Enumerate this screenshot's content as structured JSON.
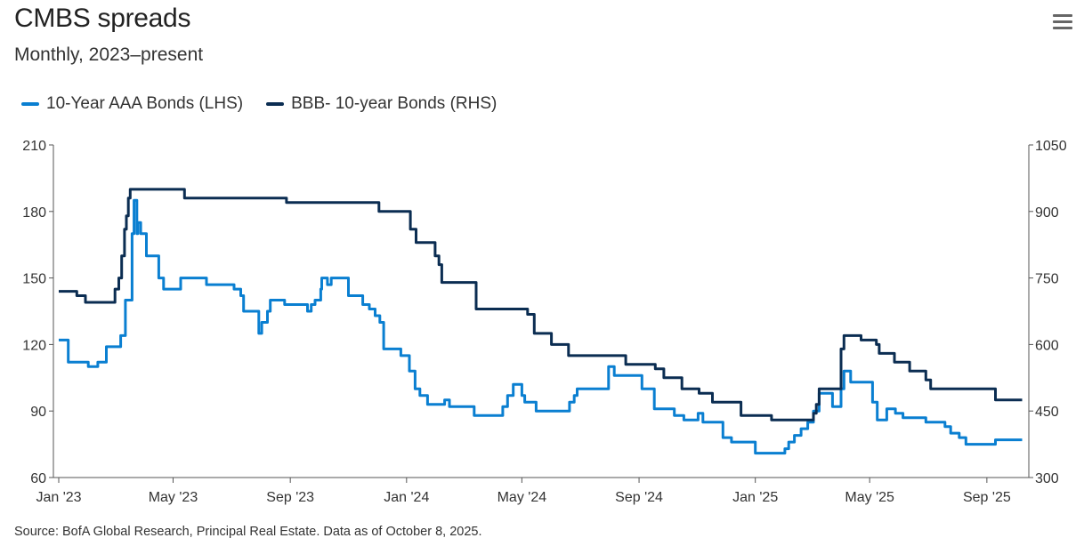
{
  "header": {
    "title": "CMBS spreads",
    "subtitle": "Monthly, 2023–present",
    "menu_icon": "hamburger-menu-icon"
  },
  "footer": {
    "source": "Source: BofA Global Research, Principal Real Estate. Data as of October 8, 2025."
  },
  "chart_data": {
    "type": "line",
    "step": true,
    "grid": false,
    "legend_position": "top-left",
    "x_tick_labels": [
      "Jan '23",
      "May '23",
      "Sep '23",
      "Jan '24",
      "May '24",
      "Sep '24",
      "Jan '25",
      "May '25",
      "Sep '25"
    ],
    "x_ticks": [
      "2023-01-01",
      "2023-05-01",
      "2023-09-01",
      "2024-01-01",
      "2024-05-01",
      "2024-09-01",
      "2025-01-01",
      "2025-05-01",
      "2025-09-01"
    ],
    "left_axis": {
      "ylim": [
        60,
        210
      ],
      "ticks": [
        60,
        90,
        120,
        150,
        180,
        210
      ]
    },
    "right_axis": {
      "ylim": [
        300,
        1050
      ],
      "ticks": [
        300,
        450,
        600,
        750,
        900,
        1050
      ]
    },
    "series": [
      {
        "name": "10-Year AAA Bonds (LHS)",
        "axis": "left",
        "color": "#0a7fd1",
        "points": [
          [
            "2023-01-01",
            122
          ],
          [
            "2023-01-11",
            112
          ],
          [
            "2023-02-01",
            110
          ],
          [
            "2023-02-11",
            112
          ],
          [
            "2023-02-20",
            119
          ],
          [
            "2023-03-07",
            124
          ],
          [
            "2023-03-12",
            140
          ],
          [
            "2023-03-19",
            170
          ],
          [
            "2023-03-21",
            185
          ],
          [
            "2023-03-24",
            170
          ],
          [
            "2023-03-25",
            175
          ],
          [
            "2023-03-28",
            170
          ],
          [
            "2023-04-03",
            160
          ],
          [
            "2023-04-16",
            150
          ],
          [
            "2023-04-21",
            145
          ],
          [
            "2023-05-09",
            150
          ],
          [
            "2023-06-05",
            147
          ],
          [
            "2023-07-04",
            145
          ],
          [
            "2023-07-11",
            142
          ],
          [
            "2023-07-14",
            135
          ],
          [
            "2023-07-30",
            125
          ],
          [
            "2023-08-02",
            130
          ],
          [
            "2023-08-08",
            135
          ],
          [
            "2023-08-11",
            140
          ],
          [
            "2023-08-26",
            138
          ],
          [
            "2023-09-19",
            135
          ],
          [
            "2023-09-23",
            138
          ],
          [
            "2023-09-27",
            140
          ],
          [
            "2023-10-03",
            145
          ],
          [
            "2023-10-04",
            150
          ],
          [
            "2023-10-10",
            147
          ],
          [
            "2023-10-14",
            150
          ],
          [
            "2023-11-01",
            142
          ],
          [
            "2023-11-16",
            138
          ],
          [
            "2023-11-23",
            136
          ],
          [
            "2023-11-29",
            133
          ],
          [
            "2023-12-04",
            130
          ],
          [
            "2023-12-08",
            118
          ],
          [
            "2023-12-26",
            115
          ],
          [
            "2024-01-04",
            108
          ],
          [
            "2024-01-10",
            100
          ],
          [
            "2024-01-15",
            97
          ],
          [
            "2024-01-23",
            93
          ],
          [
            "2024-02-10",
            95
          ],
          [
            "2024-02-15",
            92
          ],
          [
            "2024-03-12",
            88
          ],
          [
            "2024-04-11",
            92
          ],
          [
            "2024-04-16",
            97
          ],
          [
            "2024-04-22",
            102
          ],
          [
            "2024-05-01",
            97
          ],
          [
            "2024-05-04",
            94
          ],
          [
            "2024-05-16",
            90
          ],
          [
            "2024-06-20",
            94
          ],
          [
            "2024-06-25",
            97
          ],
          [
            "2024-06-28",
            100
          ],
          [
            "2024-07-31",
            110
          ],
          [
            "2024-08-06",
            106
          ],
          [
            "2024-09-04",
            100
          ],
          [
            "2024-09-17",
            91
          ],
          [
            "2024-10-08",
            88
          ],
          [
            "2024-10-18",
            86
          ],
          [
            "2024-11-02",
            89
          ],
          [
            "2024-11-07",
            85
          ],
          [
            "2024-11-28",
            78
          ],
          [
            "2024-12-07",
            76
          ],
          [
            "2025-01-01",
            71
          ],
          [
            "2025-02-01",
            73
          ],
          [
            "2025-02-05",
            76
          ],
          [
            "2025-02-11",
            79
          ],
          [
            "2025-02-18",
            82
          ],
          [
            "2025-02-25",
            85
          ],
          [
            "2025-03-03",
            90
          ],
          [
            "2025-03-09",
            98
          ],
          [
            "2025-03-23",
            92
          ],
          [
            "2025-04-01",
            100
          ],
          [
            "2025-04-04",
            108
          ],
          [
            "2025-04-11",
            103
          ],
          [
            "2025-05-04",
            94
          ],
          [
            "2025-05-09",
            86
          ],
          [
            "2025-05-19",
            91
          ],
          [
            "2025-05-28",
            89
          ],
          [
            "2025-06-05",
            87
          ],
          [
            "2025-06-29",
            85
          ],
          [
            "2025-07-19",
            83
          ],
          [
            "2025-07-25",
            80
          ],
          [
            "2025-08-03",
            78
          ],
          [
            "2025-08-10",
            75
          ],
          [
            "2025-09-10",
            77
          ],
          [
            "2025-10-08",
            77
          ]
        ]
      },
      {
        "name": "BBB- 10-year Bonds (RHS)",
        "axis": "right",
        "color": "#0b2d52",
        "points": [
          [
            "2023-01-01",
            720
          ],
          [
            "2023-01-20",
            710
          ],
          [
            "2023-01-29",
            695
          ],
          [
            "2023-03-01",
            725
          ],
          [
            "2023-03-05",
            750
          ],
          [
            "2023-03-08",
            800
          ],
          [
            "2023-03-11",
            860
          ],
          [
            "2023-03-13",
            890
          ],
          [
            "2023-03-15",
            930
          ],
          [
            "2023-03-17",
            950
          ],
          [
            "2023-05-13",
            930
          ],
          [
            "2023-08-28",
            920
          ],
          [
            "2023-12-03",
            900
          ],
          [
            "2024-01-05",
            860
          ],
          [
            "2024-01-11",
            830
          ],
          [
            "2024-01-31",
            800
          ],
          [
            "2024-02-04",
            780
          ],
          [
            "2024-02-07",
            740
          ],
          [
            "2024-03-14",
            680
          ],
          [
            "2024-05-07",
            668
          ],
          [
            "2024-05-14",
            625
          ],
          [
            "2024-06-01",
            600
          ],
          [
            "2024-06-19",
            575
          ],
          [
            "2024-08-18",
            555
          ],
          [
            "2024-09-18",
            545
          ],
          [
            "2024-09-27",
            525
          ],
          [
            "2024-10-16",
            500
          ],
          [
            "2024-11-03",
            490
          ],
          [
            "2024-11-17",
            470
          ],
          [
            "2024-12-17",
            440
          ],
          [
            "2025-01-18",
            430
          ],
          [
            "2025-03-03",
            445
          ],
          [
            "2025-03-06",
            465
          ],
          [
            "2025-03-09",
            500
          ],
          [
            "2025-04-01",
            590
          ],
          [
            "2025-04-04",
            620
          ],
          [
            "2025-04-22",
            610
          ],
          [
            "2025-05-08",
            600
          ],
          [
            "2025-05-11",
            580
          ],
          [
            "2025-05-27",
            560
          ],
          [
            "2025-06-12",
            540
          ],
          [
            "2025-06-29",
            520
          ],
          [
            "2025-07-04",
            500
          ],
          [
            "2025-09-10",
            475
          ],
          [
            "2025-10-08",
            475
          ]
        ]
      }
    ]
  }
}
